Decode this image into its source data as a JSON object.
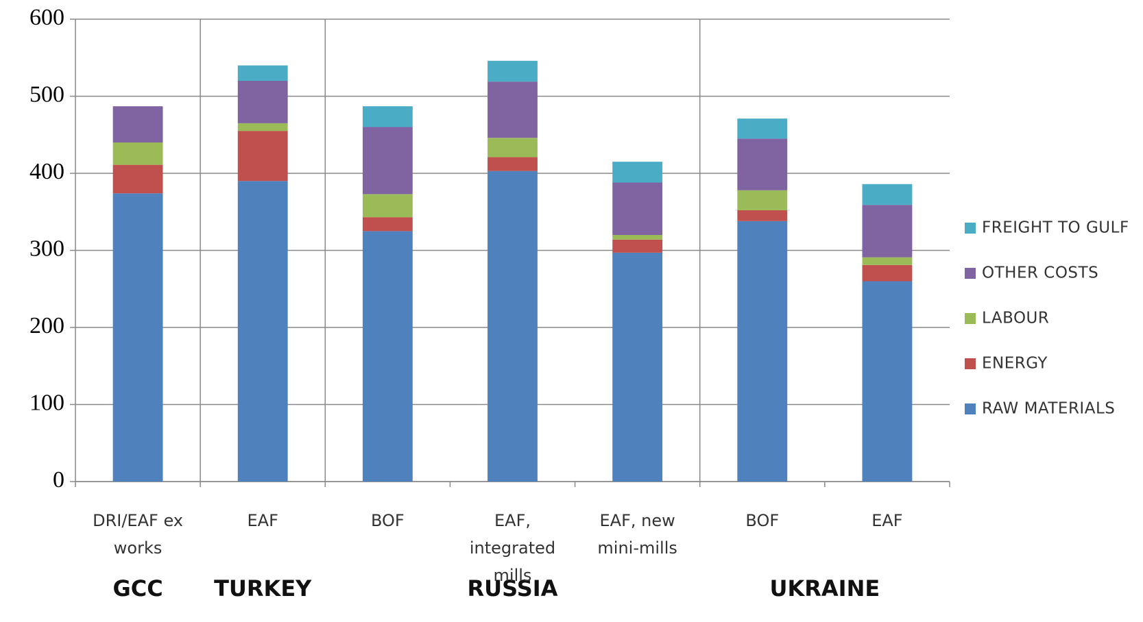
{
  "chart_data": {
    "type": "stacked-bar",
    "groups": [
      {
        "name": "GCC",
        "categories": [
          "DRI/EAF ex works"
        ]
      },
      {
        "name": "TURKEY",
        "categories": [
          "EAF"
        ]
      },
      {
        "name": "RUSSIA",
        "categories": [
          "BOF",
          "EAF, integrated mills",
          "EAF, new mini-mills"
        ]
      },
      {
        "name": "UKRAINE",
        "categories": [
          "BOF",
          "EAF"
        ]
      }
    ],
    "series": [
      {
        "name": "RAW MATERIALS",
        "color": "#4f81bd",
        "values": [
          374,
          390,
          325,
          403,
          297,
          338,
          260
        ]
      },
      {
        "name": "ENERGY",
        "color": "#c0504d",
        "values": [
          37,
          65,
          18,
          18,
          17,
          14,
          21
        ]
      },
      {
        "name": "LABOUR",
        "color": "#9bbb59",
        "values": [
          29,
          10,
          30,
          25,
          6,
          26,
          10
        ]
      },
      {
        "name": "OTHER COSTS",
        "color": "#8064a2",
        "values": [
          47,
          55,
          87,
          73,
          68,
          67,
          68
        ]
      },
      {
        "name": "FREIGHT TO GULF",
        "color": "#4bacc6",
        "values": [
          0,
          20,
          27,
          27,
          27,
          26,
          27
        ]
      }
    ],
    "ylim": [
      0,
      600
    ],
    "yticks": [
      0,
      100,
      200,
      300,
      400,
      500,
      600
    ],
    "grid": true,
    "legend": "right"
  }
}
